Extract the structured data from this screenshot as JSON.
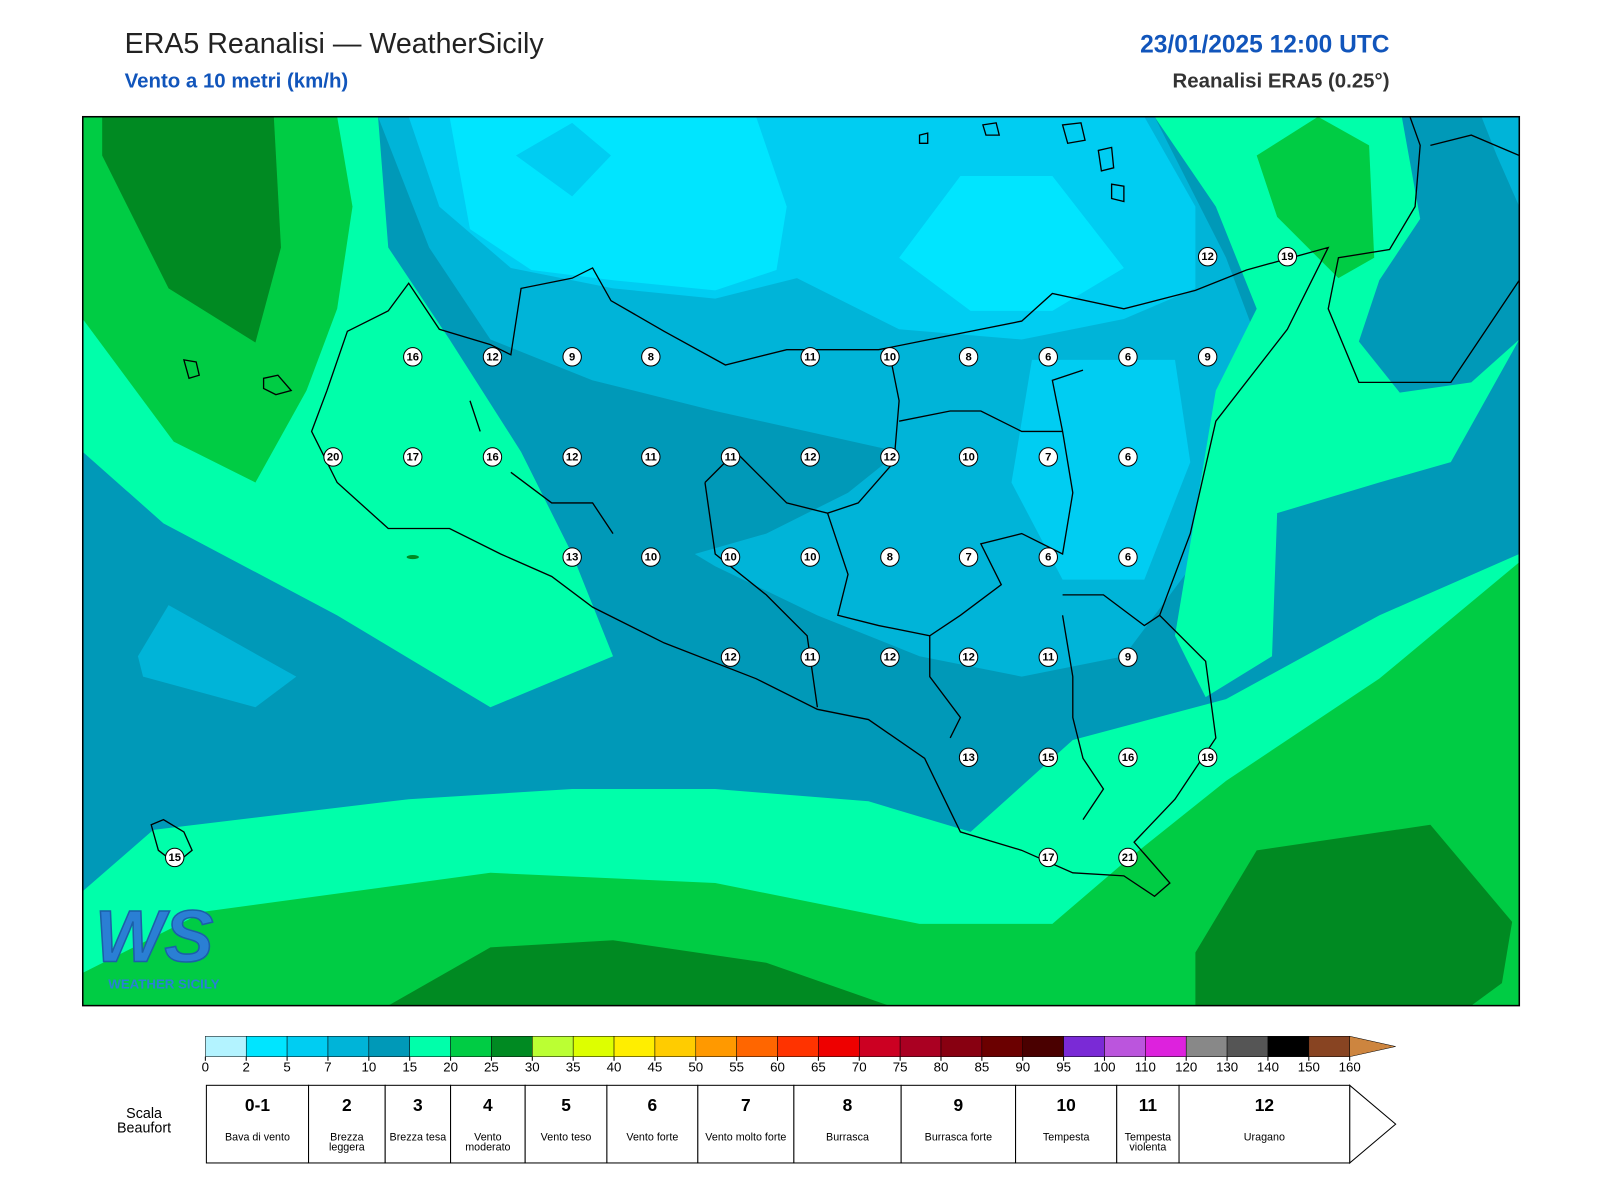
{
  "header": {
    "title": "ERA5 Reanalisi — WeatherSicily",
    "subtitle": "Vento a 10 metri (km/h)",
    "datetime": "23/01/2025 12:00 UTC",
    "source": "Reanalisi ERA5 (0.25°)"
  },
  "wind_labels": [
    12,
    19,
    16,
    12,
    9,
    8,
    11,
    10,
    8,
    6,
    6,
    9,
    20,
    17,
    16,
    12,
    11,
    11,
    12,
    12,
    10,
    7,
    6,
    13,
    10,
    10,
    10,
    8,
    7,
    6,
    6,
    12,
    11,
    12,
    12,
    11,
    9,
    13,
    15,
    16,
    19,
    15,
    17,
    21
  ],
  "colorbar": {
    "ticks": [
      0,
      2,
      5,
      7,
      10,
      15,
      20,
      25,
      30,
      35,
      40,
      45,
      50,
      55,
      60,
      65,
      70,
      75,
      80,
      85,
      90,
      95,
      100,
      110,
      120,
      130,
      140,
      150,
      160
    ],
    "colors": [
      "#b3f3ff",
      "#00e5ff",
      "#00cdf2",
      "#00b4d8",
      "#0099b8",
      "#00ffaa",
      "#00cc44",
      "#008a22",
      "#bbff33",
      "#ddff00",
      "#ffee00",
      "#ffcc00",
      "#ff9900",
      "#ff6600",
      "#ff3300",
      "#ee0000",
      "#cc0022",
      "#aa0022",
      "#880011",
      "#6b0000",
      "#4a0000",
      "#7a2ad6",
      "#bb55dd",
      "#dd22dd",
      "#888888",
      "#555555",
      "#000000",
      "#884422",
      "#cd853f"
    ]
  },
  "beaufort": {
    "label": "Scala Beaufort",
    "grades": [
      {
        "grade": "0-1",
        "description": "Bava di vento"
      },
      {
        "grade": "2",
        "description": "Brezza leggera"
      },
      {
        "grade": "3",
        "description": "Brezza tesa"
      },
      {
        "grade": "4",
        "description": "Vento moderato"
      },
      {
        "grade": "5",
        "description": "Vento teso"
      },
      {
        "grade": "6",
        "description": "Vento forte"
      },
      {
        "grade": "7",
        "description": "Vento molto forte"
      },
      {
        "grade": "8",
        "description": "Burrasca"
      },
      {
        "grade": "9",
        "description": "Burrasca forte"
      },
      {
        "grade": "10",
        "description": "Tempesta"
      },
      {
        "grade": "11",
        "description": "Tempesta violenta"
      },
      {
        "grade": "12",
        "description": "Uragano"
      }
    ]
  },
  "logo": {
    "initials": "WS",
    "name": "WEATHER SICILY"
  }
}
